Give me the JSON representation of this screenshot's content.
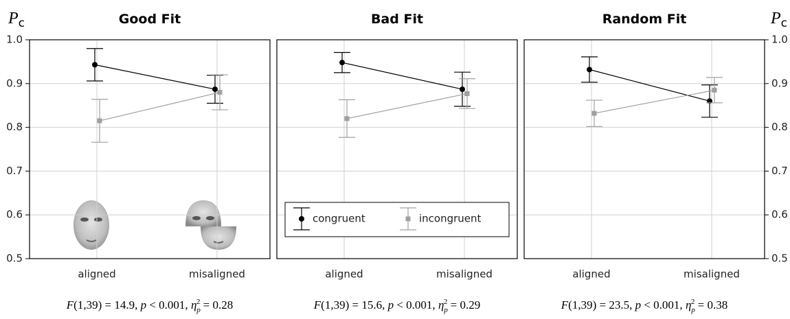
{
  "chart_data": [
    {
      "type": "line",
      "title": "Good Fit",
      "categories": [
        "aligned",
        "misaligned"
      ],
      "series": [
        {
          "color": "#000000",
          "marker": "circle",
          "values": [
            0.943,
            0.887
          ],
          "errors": [
            0.037,
            0.032
          ]
        },
        {
          "color": "#a0a0a0",
          "marker": "square",
          "values": [
            0.815,
            0.88
          ],
          "errors": [
            0.049,
            0.04
          ]
        }
      ],
      "ylim": [
        0.5,
        1
      ],
      "yticks": [
        0.5,
        0.6,
        0.7,
        0.8,
        0.9,
        {
          "value": 1,
          "label": "1.0"
        }
      ],
      "grid": true,
      "yaxis": "left",
      "ylabel": "P",
      "ylabel_sub": "c",
      "annotation": [
        "F",
        "(1,39) = 14.9, ",
        "p",
        " < 0.001, ",
        "η",
        "p",
        "2",
        " = 0.28"
      ]
    },
    {
      "type": "line",
      "title": "Bad Fit",
      "categories": [
        "aligned",
        "misaligned"
      ],
      "series": [
        {
          "name": "congruent",
          "color": "#000000",
          "marker": "circle",
          "values": [
            0.948,
            0.887
          ],
          "errors": [
            0.023,
            0.039
          ]
        },
        {
          "name": "incongruent",
          "color": "#a0a0a0",
          "marker": "square",
          "values": [
            0.82,
            0.877
          ],
          "errors": [
            0.043,
            0.034
          ]
        }
      ],
      "ylim": [
        0.5,
        1
      ],
      "yticks": [
        0.5,
        0.6,
        0.7,
        0.8,
        0.9,
        {
          "value": 1,
          "label": "1.0"
        }
      ],
      "grid": true,
      "legend": "bottom",
      "annotation": [
        "F",
        "(1,39) = 15.6, ",
        "p",
        " < 0.001, ",
        "η",
        "p",
        "2",
        " = 0.29"
      ]
    },
    {
      "type": "line",
      "title": "Random Fit",
      "categories": [
        "aligned",
        "misaligned"
      ],
      "series": [
        {
          "color": "#000000",
          "marker": "circle",
          "values": [
            0.932,
            0.86
          ],
          "errors": [
            0.029,
            0.037
          ]
        },
        {
          "color": "#a0a0a0",
          "marker": "square",
          "values": [
            0.832,
            0.885
          ],
          "errors": [
            0.03,
            0.029
          ]
        }
      ],
      "ylim": [
        0.5,
        1
      ],
      "yticks": [
        0.5,
        0.6,
        0.7,
        0.8,
        0.9,
        {
          "value": 1,
          "label": "1.0"
        }
      ],
      "grid": true,
      "yaxis": "right",
      "ylabel": "P",
      "ylabel_sub": "c",
      "annotation": [
        "F",
        "(1,39) = 23.5, ",
        "p",
        " < 0.001, ",
        "η",
        "p",
        "2",
        " = 0.38"
      ]
    }
  ]
}
